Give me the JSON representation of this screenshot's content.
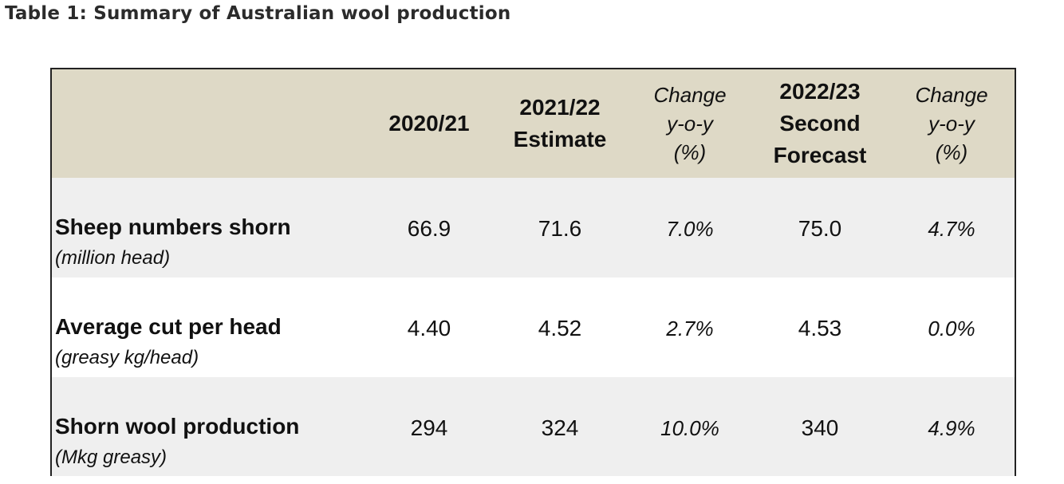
{
  "caption": "Table 1: Summary of Australian wool production",
  "header": {
    "col1": [
      "2020/21"
    ],
    "col2": [
      "2021/22",
      "Estimate"
    ],
    "col3": [
      "Change",
      "y-o-y",
      "(%)"
    ],
    "col4": [
      "2022/23",
      "Second",
      "Forecast"
    ],
    "col5": [
      "Change",
      "y-o-y",
      "(%)"
    ]
  },
  "rows": [
    {
      "label": "Sheep numbers shorn",
      "unit": "(million head)",
      "v1": "66.9",
      "v2": "71.6",
      "chg1": "7.0%",
      "v3": "75.0",
      "chg2": "4.7%"
    },
    {
      "label": "Average cut per head",
      "unit": "(greasy kg/head)",
      "v1": "4.40",
      "v2": "4.52",
      "chg1": "2.7%",
      "v3": "4.53",
      "chg2": "0.0%"
    },
    {
      "label": "Shorn wool production",
      "unit": "(Mkg greasy)",
      "v1": "294",
      "v2": "324",
      "chg1": "10.0%",
      "v3": "340",
      "chg2": "4.9%"
    }
  ]
}
